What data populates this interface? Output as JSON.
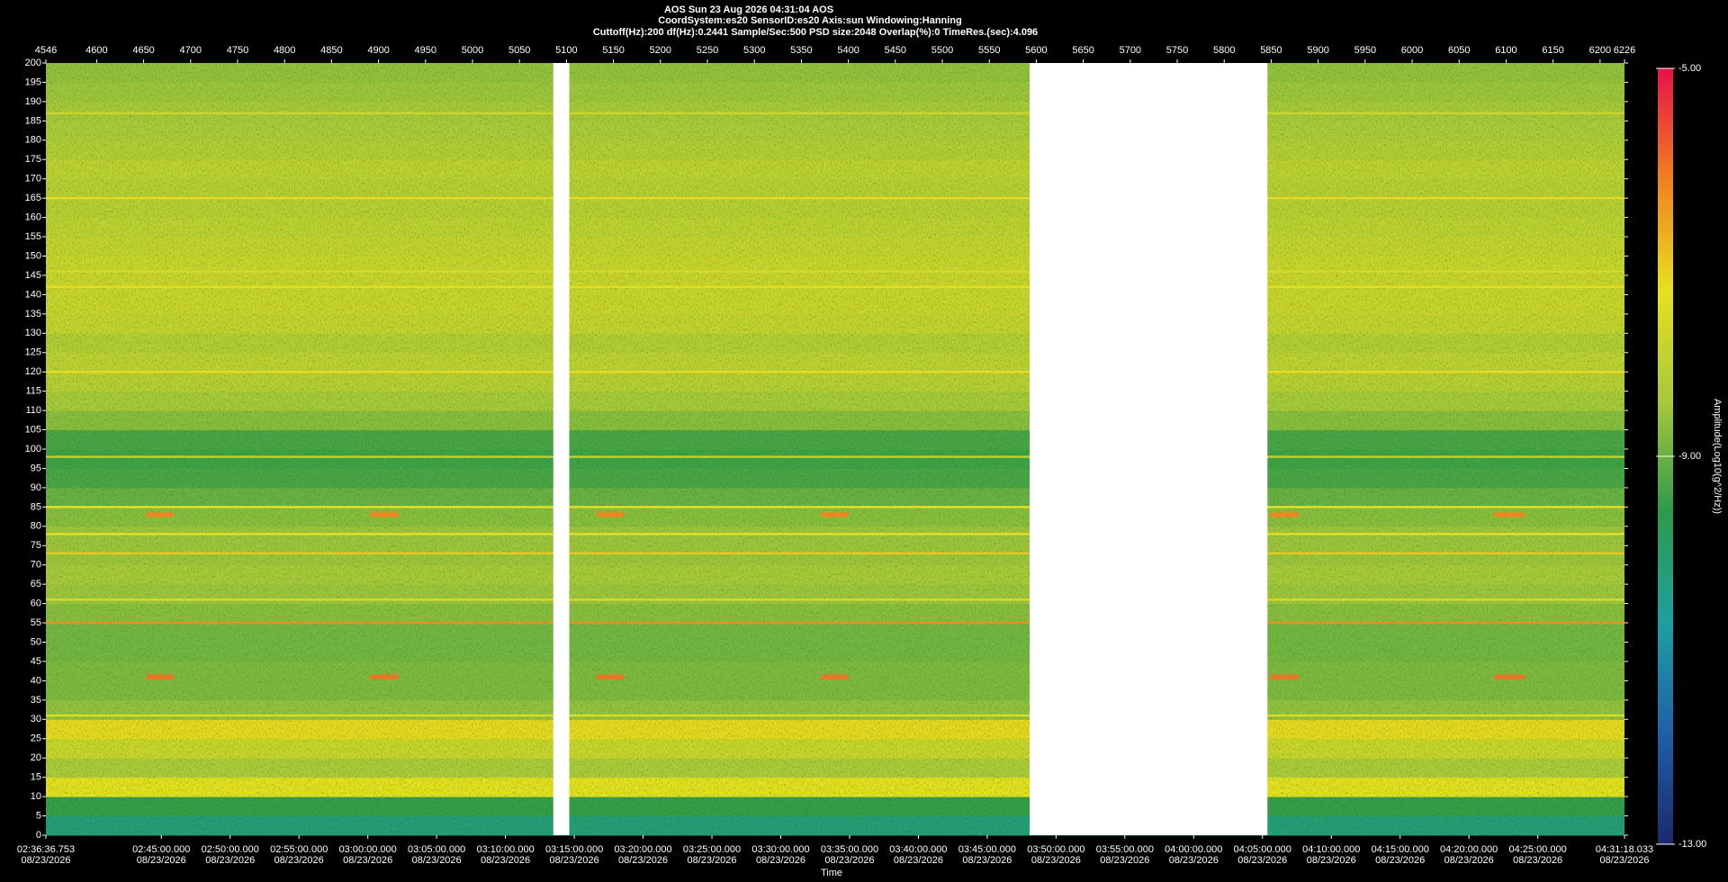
{
  "chart_data": {
    "type": "spectrogram",
    "title": "AOS  Sun 23 Aug 2026 04:31:04  AOS",
    "subtitle": "CoordSystem:es20    SensorID:es20     Axis:sun     Windowing:Hanning",
    "parameters": "Cuttoff(Hz):200       df(Hz):0.2441        Sample/Sec:500        PSD size:2048        Overlap(%):0        TimeRes.(sec):4.096",
    "xlabel": "Time",
    "colorbar_label": "Amplitude(Log10(g^2/Hz))",
    "xlim": [
      4546,
      6226
    ],
    "xticks": [
      4546,
      4600,
      4650,
      4700,
      4750,
      4800,
      4850,
      4900,
      4950,
      5000,
      5050,
      5100,
      5150,
      5200,
      5250,
      5300,
      5350,
      5400,
      5450,
      5500,
      5550,
      5600,
      5650,
      5700,
      5750,
      5800,
      5850,
      5900,
      5950,
      6000,
      6050,
      6100,
      6150,
      6200,
      6226
    ],
    "x2ticks": [
      {
        "value": 4546,
        "label": "02:36:36.753",
        "date": "08/23/2026"
      },
      {
        "value": 4668.86,
        "label": "02:45:00.000",
        "date": "08/23/2026"
      },
      {
        "value": 4742.11,
        "label": "02:50:00.000",
        "date": "08/23/2026"
      },
      {
        "value": 4815.35,
        "label": "02:55:00.000",
        "date": "08/23/2026"
      },
      {
        "value": 4888.59,
        "label": "03:00:00.000",
        "date": "08/23/2026"
      },
      {
        "value": 4961.83,
        "label": "03:05:00.000",
        "date": "08/23/2026"
      },
      {
        "value": 5035.07,
        "label": "03:10:00.000",
        "date": "08/23/2026"
      },
      {
        "value": 5108.32,
        "label": "03:15:00.000",
        "date": "08/23/2026"
      },
      {
        "value": 5181.56,
        "label": "03:20:00.000",
        "date": "08/23/2026"
      },
      {
        "value": 5254.8,
        "label": "03:25:00.000",
        "date": "08/23/2026"
      },
      {
        "value": 5328.04,
        "label": "03:30:00.000",
        "date": "08/23/2026"
      },
      {
        "value": 5401.29,
        "label": "03:35:00.000",
        "date": "08/23/2026"
      },
      {
        "value": 5474.53,
        "label": "03:40:00.000",
        "date": "08/23/2026"
      },
      {
        "value": 5547.77,
        "label": "03:45:00.000",
        "date": "08/23/2026"
      },
      {
        "value": 5621.01,
        "label": "03:50:00.000",
        "date": "08/23/2026"
      },
      {
        "value": 5694.25,
        "label": "03:55:00.000",
        "date": "08/23/2026"
      },
      {
        "value": 5767.5,
        "label": "04:00:00.000",
        "date": "08/23/2026"
      },
      {
        "value": 5840.74,
        "label": "04:05:00.000",
        "date": "08/23/2026"
      },
      {
        "value": 5913.98,
        "label": "04:10:00.000",
        "date": "08/23/2026"
      },
      {
        "value": 5987.22,
        "label": "04:15:00.000",
        "date": "08/23/2026"
      },
      {
        "value": 6060.47,
        "label": "04:20:00.000",
        "date": "08/23/2026"
      },
      {
        "value": 6133.71,
        "label": "04:25:00.000",
        "date": "08/23/2026"
      },
      {
        "value": 6226,
        "label": "04:31:18.033",
        "date": "08/23/2026"
      }
    ],
    "ylim": [
      0,
      200
    ],
    "yticks": [
      0,
      5,
      10,
      15,
      20,
      25,
      30,
      35,
      40,
      45,
      50,
      55,
      60,
      65,
      70,
      75,
      80,
      85,
      90,
      95,
      100,
      105,
      110,
      115,
      120,
      125,
      130,
      135,
      140,
      145,
      150,
      155,
      160,
      165,
      170,
      175,
      180,
      185,
      190,
      195,
      200
    ],
    "zlim": [
      -13,
      -5
    ],
    "zticks": [
      {
        "value": -5,
        "label": "-5.00"
      },
      {
        "value": -9,
        "label": "-9.00"
      },
      {
        "value": -13,
        "label": "-13.00"
      }
    ],
    "colormap": [
      "#1a2a6c",
      "#1f5fa8",
      "#1e9fa0",
      "#2e9a4a",
      "#a8c83c",
      "#e8e020",
      "#f08020",
      "#e8104a"
    ],
    "freq_bins": [
      0,
      5,
      10,
      15,
      20,
      25,
      30,
      35,
      40,
      45,
      50,
      55,
      60,
      65,
      70,
      75,
      80,
      85,
      90,
      95,
      100,
      105,
      110,
      115,
      120,
      125,
      130,
      135,
      140,
      145,
      150,
      155,
      160,
      165,
      170,
      175,
      180,
      185,
      190,
      195,
      200
    ],
    "band_values": [
      -10.2,
      -9.5,
      -7.3,
      -8.3,
      -7.8,
      -7.2,
      -8.6,
      -8.8,
      -8.8,
      -8.9,
      -8.9,
      -8.7,
      -8.5,
      -8.4,
      -8.5,
      -8.5,
      -8.7,
      -9.0,
      -9.3,
      -9.4,
      -9.3,
      -8.7,
      -8.4,
      -8.1,
      -8.0,
      -8.2,
      -7.9,
      -7.8,
      -7.8,
      -7.8,
      -7.9,
      -8.0,
      -8.1,
      -8.1,
      -8.0,
      -8.2,
      -8.3,
      -8.4,
      -8.5,
      -8.6
    ],
    "lines": [
      {
        "frequency": 31,
        "amplitude": -7.5
      },
      {
        "frequency": 55,
        "amplitude": -6.3
      },
      {
        "frequency": 61,
        "amplitude": -7.6
      },
      {
        "frequency": 73,
        "amplitude": -7.0
      },
      {
        "frequency": 78,
        "amplitude": -7.3
      },
      {
        "frequency": 85,
        "amplitude": -7.3
      },
      {
        "frequency": 98,
        "amplitude": -8.0
      },
      {
        "frequency": 120,
        "amplitude": -7.2
      },
      {
        "frequency": 142,
        "amplitude": -7.4
      },
      {
        "frequency": 146,
        "amplitude": -7.6
      },
      {
        "frequency": 165,
        "amplitude": -7.2
      },
      {
        "frequency": 187,
        "amplitude": -7.8
      }
    ],
    "events": [
      {
        "x": [
          4653,
          4682
        ],
        "frequency": 83,
        "amplitude": -6.2
      },
      {
        "x": [
          4891,
          4921
        ],
        "frequency": 83,
        "amplitude": -6.2
      },
      {
        "x": [
          5132,
          5161
        ],
        "frequency": 83,
        "amplitude": -6.2
      },
      {
        "x": [
          5371,
          5400
        ],
        "frequency": 83,
        "amplitude": -6.2
      },
      {
        "x": [
          5849,
          5879
        ],
        "frequency": 83,
        "amplitude": -6.2
      },
      {
        "x": [
          6087,
          6120
        ],
        "frequency": 83,
        "amplitude": -6.2
      },
      {
        "x": [
          4653,
          4682
        ],
        "frequency": 41,
        "amplitude": -6.0
      },
      {
        "x": [
          4891,
          4921
        ],
        "frequency": 41,
        "amplitude": -6.0
      },
      {
        "x": [
          5132,
          5161
        ],
        "frequency": 41,
        "amplitude": -6.0
      },
      {
        "x": [
          5371,
          5400
        ],
        "frequency": 41,
        "amplitude": -6.0
      },
      {
        "x": [
          5849,
          5879
        ],
        "frequency": 41,
        "amplitude": -6.0
      },
      {
        "x": [
          6087,
          6120
        ],
        "frequency": 41,
        "amplitude": -6.0
      }
    ],
    "gaps": [
      [
        5086,
        5103
      ],
      [
        5593,
        5846
      ]
    ]
  }
}
